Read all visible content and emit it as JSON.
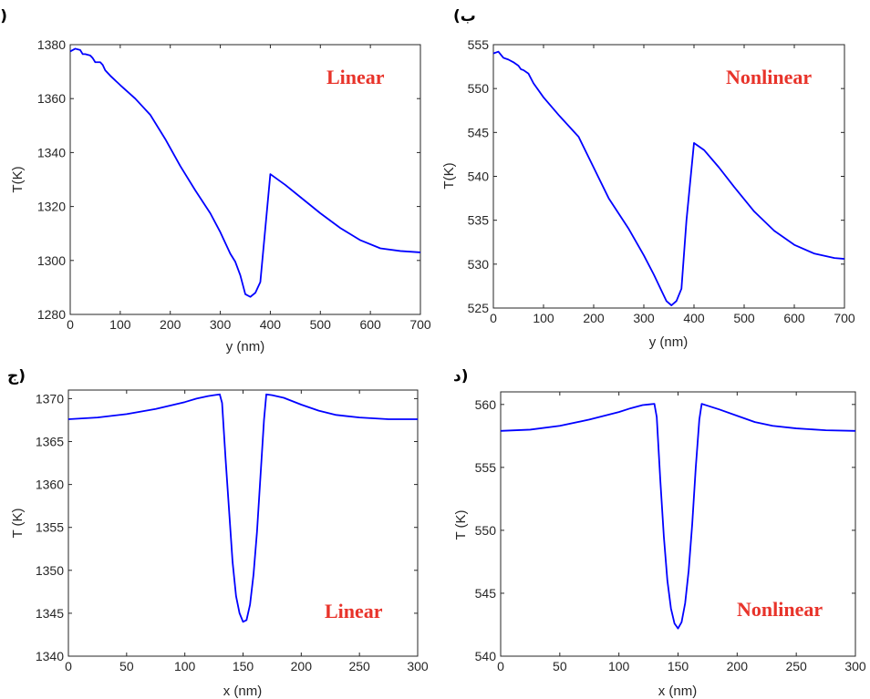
{
  "colors": {
    "line": "#0000ff",
    "annotation": "#e8332a",
    "axis": "#262626"
  },
  "chart_data": [
    {
      "type": "line",
      "panel_label": "(الف",
      "annotation": "Linear",
      "xlabel": "y (nm)",
      "ylabel": "T(K)",
      "xlim": [
        0,
        700
      ],
      "ylim": [
        1280,
        1380
      ],
      "xticks": [
        0,
        100,
        200,
        300,
        400,
        500,
        600,
        700
      ],
      "yticks": [
        1280,
        1300,
        1320,
        1340,
        1360,
        1380
      ],
      "grid": false,
      "series": [
        {
          "x": [
            0,
            10,
            20,
            25,
            30,
            40,
            45,
            50,
            55,
            60,
            65,
            70,
            80,
            100,
            130,
            160,
            190,
            220,
            250,
            280,
            300,
            320,
            330,
            340,
            350,
            360,
            370,
            380,
            400,
            430,
            460,
            500,
            540,
            580,
            620,
            660,
            700
          ],
          "y": [
            1377.5,
            1378.5,
            1378,
            1376.5,
            1376.5,
            1376,
            1375,
            1373.5,
            1373.5,
            1373.5,
            1372.5,
            1370.5,
            1368.5,
            1365,
            1360,
            1354,
            1345,
            1335,
            1326,
            1317.5,
            1310.5,
            1302.5,
            1299.5,
            1294.5,
            1287.5,
            1286.5,
            1288,
            1292,
            1332,
            1328,
            1323.5,
            1317.5,
            1312,
            1307.5,
            1304.5,
            1303.5,
            1303
          ]
        }
      ]
    },
    {
      "type": "line",
      "panel_label": "(ب",
      "annotation": "Nonlinear",
      "xlabel": "y (nm)",
      "ylabel": "T(K)",
      "xlim": [
        0,
        700
      ],
      "ylim": [
        525,
        555
      ],
      "xticks": [
        0,
        100,
        200,
        300,
        400,
        500,
        600,
        700
      ],
      "yticks": [
        525,
        530,
        535,
        540,
        545,
        550,
        555
      ],
      "grid": false,
      "series": [
        {
          "x": [
            0,
            10,
            20,
            30,
            40,
            50,
            55,
            60,
            70,
            80,
            100,
            130,
            170,
            200,
            230,
            270,
            300,
            320,
            335,
            345,
            355,
            365,
            375,
            385,
            400,
            420,
            450,
            480,
            520,
            560,
            600,
            640,
            680,
            700
          ],
          "y": [
            554,
            554.2,
            553.5,
            553.3,
            553,
            552.6,
            552.2,
            552.1,
            551.7,
            550.6,
            549,
            547,
            544.5,
            541,
            537.5,
            534,
            531,
            528.8,
            527,
            525.8,
            525.3,
            525.8,
            527.2,
            535,
            543.8,
            543,
            541,
            538.8,
            536,
            533.8,
            532.2,
            531.2,
            530.7,
            530.6
          ]
        }
      ]
    },
    {
      "type": "line",
      "panel_label": "ج)",
      "annotation": "Linear",
      "xlabel": "x (nm)",
      "ylabel": "T (K)",
      "xlim": [
        0,
        300
      ],
      "ylim": [
        1340,
        1371
      ],
      "xticks": [
        0,
        50,
        100,
        150,
        200,
        250,
        300
      ],
      "yticks": [
        1340,
        1345,
        1350,
        1355,
        1360,
        1365,
        1370
      ],
      "grid": false,
      "series": [
        {
          "x": [
            0,
            25,
            50,
            75,
            100,
            110,
            120,
            125,
            130,
            132,
            135,
            138,
            141,
            144,
            147,
            150,
            153,
            156,
            159,
            162,
            165,
            168,
            170,
            175,
            185,
            200,
            215,
            230,
            250,
            275,
            300
          ],
          "y": [
            1367.6,
            1367.8,
            1368.2,
            1368.8,
            1369.6,
            1370,
            1370.3,
            1370.4,
            1370.5,
            1369.5,
            1363,
            1357,
            1351,
            1347,
            1345,
            1344,
            1344.2,
            1346,
            1349.5,
            1354.5,
            1361,
            1367.5,
            1370.5,
            1370.4,
            1370.1,
            1369.3,
            1368.6,
            1368.1,
            1367.8,
            1367.6,
            1367.6
          ]
        }
      ]
    },
    {
      "type": "line",
      "panel_label": "د)",
      "annotation": "Nonlinear",
      "xlabel": "x (nm)",
      "ylabel": "T (K)",
      "xlim": [
        0,
        300
      ],
      "ylim": [
        540,
        561
      ],
      "xticks": [
        0,
        50,
        100,
        150,
        200,
        250,
        300
      ],
      "yticks": [
        540,
        545,
        550,
        555,
        560
      ],
      "grid": false,
      "series": [
        {
          "x": [
            0,
            25,
            50,
            75,
            100,
            110,
            120,
            125,
            130,
            132,
            135,
            138,
            141,
            144,
            147,
            150,
            153,
            156,
            159,
            162,
            165,
            168,
            170,
            175,
            185,
            200,
            215,
            230,
            250,
            275,
            300
          ],
          "y": [
            557.9,
            558,
            558.3,
            558.8,
            559.4,
            559.7,
            559.95,
            560,
            560.05,
            559,
            554,
            549.5,
            546,
            543.8,
            542.6,
            542.2,
            542.7,
            544.2,
            546.8,
            550.5,
            555,
            558.8,
            560.05,
            559.9,
            559.6,
            559.1,
            558.6,
            558.3,
            558.1,
            557.95,
            557.9
          ]
        }
      ]
    }
  ]
}
